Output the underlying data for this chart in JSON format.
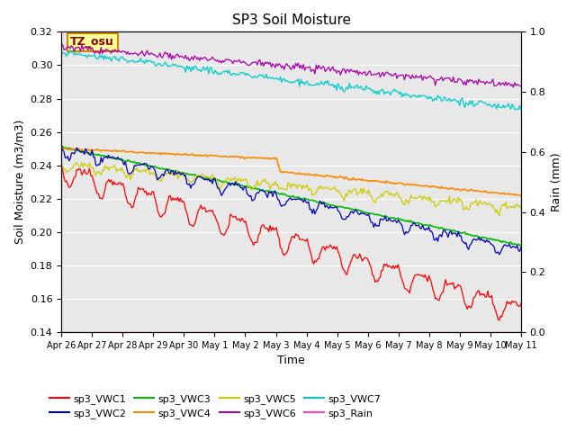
{
  "title": "SP3 Soil Moisture",
  "xlabel": "Time",
  "ylabel_left": "Soil Moisture (m3/m3)",
  "ylabel_right": "Rain (mm)",
  "annotation": "TZ_osu",
  "ylim_left": [
    0.14,
    0.32
  ],
  "ylim_right": [
    0.0,
    1.0
  ],
  "xtick_labels": [
    "Apr 26",
    "Apr 27",
    "Apr 28",
    "Apr 29",
    "Apr 30",
    "May 1",
    "May 2",
    "May 3",
    "May 4",
    "May 5",
    "May 6",
    "May 7",
    "May 8",
    "May 9",
    "May 10",
    "May 11"
  ],
  "yticks_left": [
    0.14,
    0.16,
    0.18,
    0.2,
    0.22,
    0.24,
    0.26,
    0.28,
    0.3,
    0.32
  ],
  "yticks_right": [
    0.0,
    0.2,
    0.4,
    0.6,
    0.8,
    1.0
  ],
  "background_color": "#e8e8e8",
  "legend_entries": [
    {
      "label": "sp3_VWC1",
      "color": "#ff0000"
    },
    {
      "label": "sp3_VWC2",
      "color": "#0000bb"
    },
    {
      "label": "sp3_VWC3",
      "color": "#00bb00"
    },
    {
      "label": "sp3_VWC4",
      "color": "#ff8800"
    },
    {
      "label": "sp3_VWC5",
      "color": "#cccc00"
    },
    {
      "label": "sp3_VWC6",
      "color": "#aa00aa"
    },
    {
      "label": "sp3_VWC7",
      "color": "#00cccc"
    },
    {
      "label": "sp3_Rain",
      "color": "#ff44cc"
    }
  ]
}
